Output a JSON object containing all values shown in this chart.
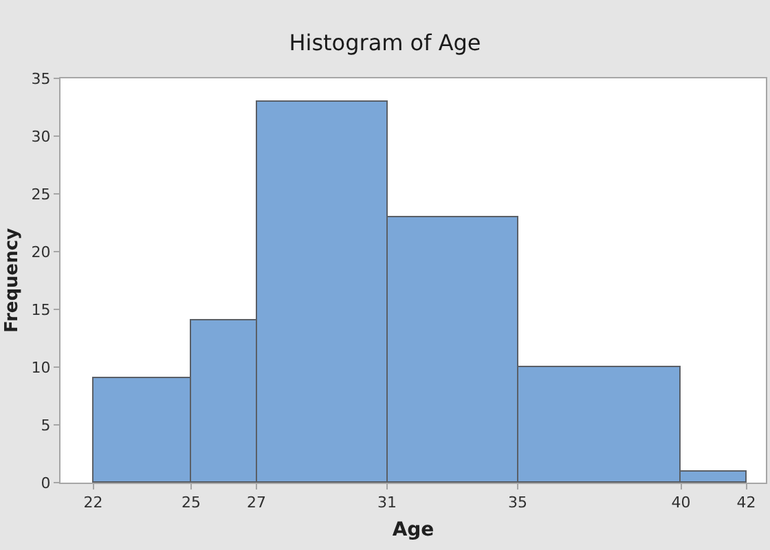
{
  "chart_data": {
    "type": "histogram",
    "title": "Histogram of Age",
    "xlabel": "Age",
    "ylabel": "Frequency",
    "bins": [
      22,
      25,
      27,
      31,
      35,
      40,
      42
    ],
    "values": [
      9,
      14,
      33,
      23,
      10,
      1
    ],
    "color": "#7ba7d8",
    "xlim": [
      21,
      42.6
    ],
    "xticks": [
      22,
      25,
      27,
      31,
      35,
      40,
      42
    ],
    "ylim": [
      0,
      35
    ],
    "yticks": [
      0,
      5,
      10,
      15,
      20,
      25,
      30,
      35
    ]
  }
}
